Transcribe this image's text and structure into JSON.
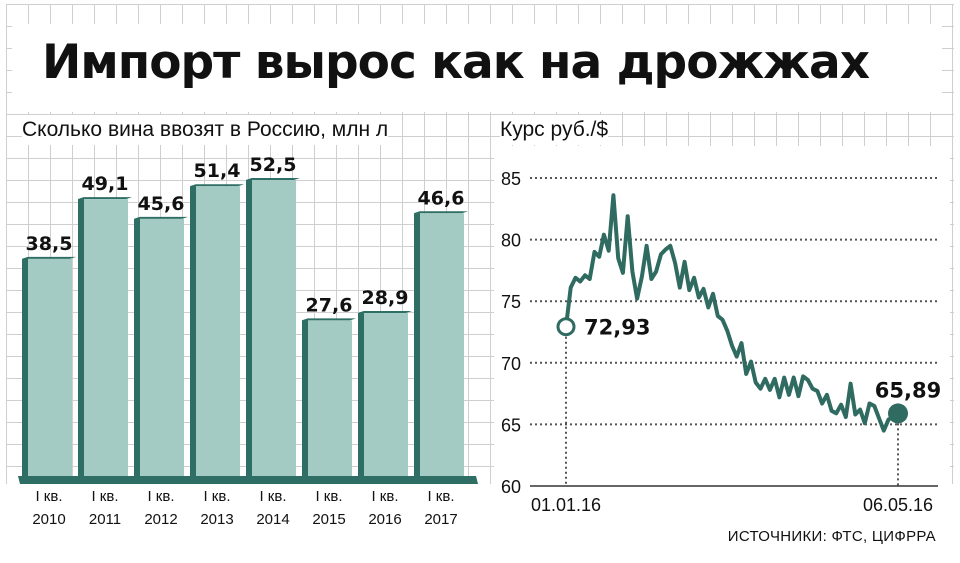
{
  "title": "Импорт вырос как на дрожжах",
  "source": "ИСТОЧНИКИ: ФТС, ЦИФРРА",
  "chart_data": [
    {
      "type": "bar",
      "title": "Сколько вина ввозят в Россию, млн л",
      "categories": [
        "I кв. 2010",
        "I кв. 2011",
        "I кв. 2012",
        "I кв. 2013",
        "I кв. 2014",
        "I кв. 2015",
        "I кв. 2016",
        "I кв. 2017"
      ],
      "category_lines": [
        [
          "I кв.",
          "2010"
        ],
        [
          "I кв.",
          "2011"
        ],
        [
          "I кв.",
          "2012"
        ],
        [
          "I кв.",
          "2013"
        ],
        [
          "I кв.",
          "2014"
        ],
        [
          "I кв.",
          "2015"
        ],
        [
          "I кв.",
          "2016"
        ],
        [
          "I кв.",
          "2017"
        ]
      ],
      "values": [
        38.5,
        49.1,
        45.6,
        51.4,
        52.5,
        27.6,
        28.9,
        46.6
      ],
      "value_labels": [
        "38,5",
        "49,1",
        "45,6",
        "51,4",
        "52,5",
        "27,6",
        "28,9",
        "46,6"
      ],
      "bar_color": "#a3cbc4",
      "bar_side_color": "#2e6e64",
      "ylim": [
        0,
        60
      ]
    },
    {
      "type": "line",
      "title": "Курс руб./$",
      "x_start": "01.01.16",
      "x_end": "06.05.16",
      "x_ticks": [
        "01.01.16",
        "06.05.16"
      ],
      "y_ticks": [
        60,
        65,
        70,
        75,
        80,
        85
      ],
      "ylim": [
        60,
        85
      ],
      "grid": true,
      "line_color": "#2f6b61",
      "annotations": [
        {
          "date": "01.01.16",
          "value": 72.93,
          "label": "72,93"
        },
        {
          "date": "06.05.16",
          "value": 65.89,
          "label": "65,89"
        }
      ],
      "series": [
        {
          "values": [
            72.93,
            76.1,
            76.9,
            76.6,
            77.1,
            76.8,
            79.0,
            78.6,
            80.4,
            79.1,
            83.6,
            78.5,
            77.3,
            81.9,
            77.4,
            75.2,
            77.0,
            79.5,
            76.8,
            77.4,
            78.8,
            79.2,
            79.5,
            78.1,
            76.1,
            78.2,
            75.9,
            76.9,
            75.3,
            76.0,
            74.5,
            75.6,
            73.8,
            73.5,
            72.6,
            71.4,
            70.5,
            71.6,
            69.1,
            70.1,
            68.4,
            67.9,
            68.7,
            67.8,
            68.7,
            67.2,
            68.8,
            67.4,
            68.8,
            67.3,
            68.9,
            68.6,
            67.9,
            67.7,
            66.7,
            67.4,
            66.1,
            65.9,
            66.6,
            65.6,
            68.3,
            65.8,
            66.2,
            65.1,
            66.7,
            66.5,
            65.5,
            64.5,
            65.4,
            65.6,
            65.89
          ]
        }
      ]
    }
  ]
}
